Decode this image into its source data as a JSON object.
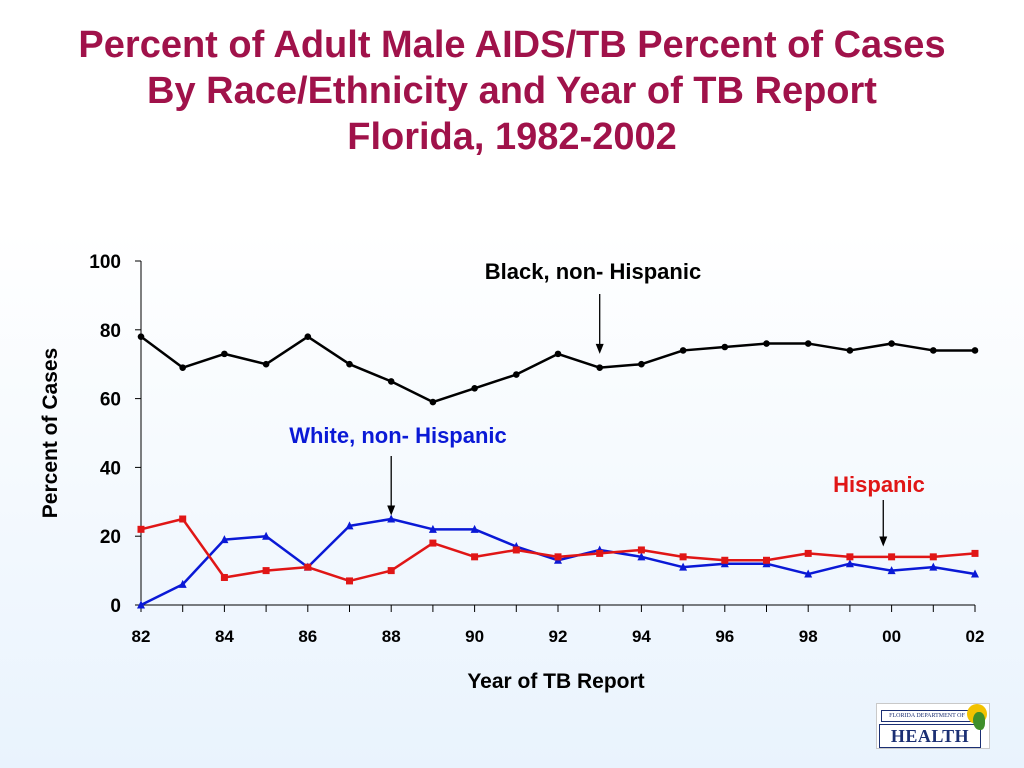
{
  "page": {
    "title_lines": [
      "Percent of Adult Male AIDS/TB Percent of Cases",
      "By Race/Ethnicity and Year of TB Report",
      "Florida, 1982-2002"
    ]
  },
  "logo": {
    "top_text": "FLORIDA DEPARTMENT OF",
    "main_text": "HEALTH"
  },
  "chart_data": {
    "type": "line",
    "title": "Percent of Adult Male AIDS/TB Percent of Cases By Race/Ethnicity and Year of TB Report Florida, 1982-2002",
    "xlabel": "Year of TB Report",
    "ylabel": "Percent of Cases",
    "x": [
      1982,
      1983,
      1984,
      1985,
      1986,
      1987,
      1988,
      1989,
      1990,
      1991,
      1992,
      1993,
      1994,
      1995,
      1996,
      1997,
      1998,
      1999,
      2000,
      2001,
      2002
    ],
    "xticks": [
      "82",
      "84",
      "86",
      "88",
      "90",
      "92",
      "94",
      "96",
      "98",
      "00",
      "02"
    ],
    "ylim": [
      0,
      100
    ],
    "yticks": [
      0,
      20,
      40,
      60,
      80,
      100
    ],
    "grid": false,
    "series": [
      {
        "name": "Black, non- Hispanic",
        "color": "#000000",
        "marker": "circle",
        "values": [
          78,
          69,
          73,
          70,
          78,
          70,
          65,
          59,
          63,
          67,
          73,
          69,
          70,
          74,
          75,
          76,
          76,
          74,
          76,
          74,
          74
        ]
      },
      {
        "name": "White, non- Hispanic",
        "color": "#0a19d6",
        "marker": "triangle",
        "values": [
          0,
          6,
          19,
          20,
          11,
          23,
          25,
          22,
          22,
          17,
          13,
          16,
          14,
          11,
          12,
          12,
          9,
          12,
          10,
          11,
          9
        ]
      },
      {
        "name": "Hispanic",
        "color": "#e01616",
        "marker": "square",
        "values": [
          22,
          25,
          8,
          10,
          11,
          7,
          10,
          18,
          14,
          16,
          14,
          15,
          16,
          14,
          13,
          13,
          15,
          14,
          14,
          14,
          15
        ]
      }
    ],
    "annotations": [
      {
        "text": "Black, non- Hispanic",
        "color": "#000000",
        "arrow_to": {
          "x": 1993,
          "y": 73
        }
      },
      {
        "text": "White, non- Hispanic",
        "color": "#0a19d6",
        "arrow_to": {
          "x": 1988,
          "y": 26
        }
      },
      {
        "text": "Hispanic",
        "color": "#e01616",
        "arrow_to": {
          "x": 1999.8,
          "y": 17
        }
      }
    ]
  }
}
